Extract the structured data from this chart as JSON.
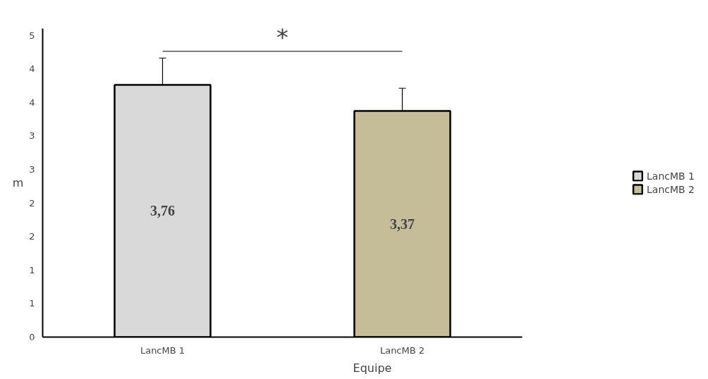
{
  "chart_data": {
    "type": "bar",
    "xlabel": "Equipe",
    "ylabel": "m",
    "categories": [
      "LancMB 1",
      "LancMB 2"
    ],
    "stacked": true,
    "series": [
      {
        "name": "LancMB 1",
        "color": "#d9d9d9",
        "values": [
          3.76,
          null
        ],
        "errors": [
          0.4,
          null
        ],
        "value_labels": [
          "3,76",
          null
        ]
      },
      {
        "name": "LancMB 2",
        "color": "#c4bd97",
        "values": [
          null,
          3.37
        ],
        "errors": [
          null,
          0.34
        ],
        "value_labels": [
          null,
          "3,37"
        ]
      }
    ],
    "ylim": [
      0,
      4.6
    ],
    "yticks": [
      {
        "value": 0,
        "label": "0"
      },
      {
        "value": 0.5,
        "label": "1"
      },
      {
        "value": 1,
        "label": "1"
      },
      {
        "value": 1.5,
        "label": "2"
      },
      {
        "value": 2,
        "label": "2"
      },
      {
        "value": 2.5,
        "label": "3"
      },
      {
        "value": 3,
        "label": "3"
      },
      {
        "value": 3.5,
        "label": "4"
      },
      {
        "value": 4,
        "label": "4"
      },
      {
        "value": 4.5,
        "label": "5"
      }
    ],
    "annotations": [
      "*"
    ],
    "grid": false,
    "legend": "right"
  }
}
